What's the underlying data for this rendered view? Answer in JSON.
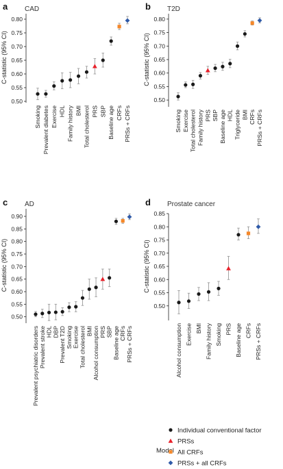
{
  "chart_data": [
    {
      "type": "scatter",
      "panel": "a",
      "title": "CAD",
      "ylabel": "C-statistic (95% CI)",
      "ylim": [
        0.5,
        0.82
      ],
      "yticks": [
        0.5,
        0.55,
        0.6,
        0.65,
        0.7,
        0.75,
        0.8
      ],
      "categories": [
        "Smoking",
        "Prevalent diabetes",
        "Exercise",
        "HDL",
        "Family history",
        "BMI",
        "Total cholesterol",
        "PRS",
        "SBP",
        "Baseline age",
        "CRFs",
        "PRSs + CRFs"
      ],
      "series_index": [
        0,
        0,
        0,
        0,
        0,
        0,
        0,
        1,
        0,
        0,
        2,
        3
      ],
      "values": [
        0.527,
        0.527,
        0.556,
        0.575,
        0.578,
        0.592,
        0.607,
        0.628,
        0.65,
        0.72,
        0.773,
        0.795
      ],
      "ci_low": [
        0.506,
        0.515,
        0.542,
        0.546,
        0.55,
        0.564,
        0.585,
        0.6,
        0.625,
        0.705,
        0.762,
        0.783
      ],
      "ci_high": [
        0.548,
        0.54,
        0.571,
        0.604,
        0.606,
        0.62,
        0.628,
        0.656,
        0.676,
        0.735,
        0.785,
        0.81
      ]
    },
    {
      "type": "scatter",
      "panel": "b",
      "title": "T2D",
      "ylabel": "C-statistic (95% CI)",
      "ylim": [
        0.48,
        0.82
      ],
      "yticks": [
        0.5,
        0.55,
        0.6,
        0.65,
        0.7,
        0.75,
        0.8
      ],
      "categories": [
        "Smoking",
        "Exercise",
        "Total cholesterol",
        "Family history",
        "PRS",
        "SBP",
        "Baseline age",
        "HDL",
        "Triglyceride",
        "BMI",
        "CRFs",
        "PRSs + CRFs"
      ],
      "series_index": [
        0,
        0,
        0,
        0,
        1,
        0,
        0,
        0,
        0,
        0,
        2,
        3
      ],
      "values": [
        0.513,
        0.556,
        0.558,
        0.59,
        0.61,
        0.618,
        0.624,
        0.635,
        0.7,
        0.745,
        0.785,
        0.795
      ],
      "ci_low": [
        0.5,
        0.546,
        0.543,
        0.578,
        0.595,
        0.605,
        0.61,
        0.62,
        0.686,
        0.734,
        0.778,
        0.786
      ],
      "ci_high": [
        0.527,
        0.567,
        0.573,
        0.602,
        0.625,
        0.632,
        0.64,
        0.651,
        0.715,
        0.757,
        0.793,
        0.805
      ]
    },
    {
      "type": "scatter",
      "panel": "c",
      "title": "AD",
      "ylabel": "C-statistic (95% CI)",
      "ylim": [
        0.48,
        0.93
      ],
      "yticks": [
        0.5,
        0.55,
        0.6,
        0.65,
        0.7,
        0.75,
        0.8,
        0.85,
        0.9
      ],
      "categories": [
        "Prevalent psychiatric disorders",
        "Prevalent stroke",
        "HDL",
        "DBP",
        "Prevalent T2D",
        "Smoking",
        "Exercise",
        "Total cholesterol",
        "BMI",
        "Alcohol consumption",
        "PRS",
        "SBP",
        "Baseline age",
        "CRFs",
        "PRSs + CRFs"
      ],
      "series_index": [
        0,
        0,
        0,
        0,
        0,
        0,
        0,
        0,
        0,
        0,
        1,
        0,
        0,
        2,
        3
      ],
      "values": [
        0.51,
        0.513,
        0.517,
        0.518,
        0.52,
        0.538,
        0.54,
        0.575,
        0.61,
        0.617,
        0.65,
        0.655,
        0.88,
        0.882,
        0.898
      ],
      "ci_low": [
        0.5,
        0.497,
        0.485,
        0.488,
        0.505,
        0.52,
        0.52,
        0.545,
        0.57,
        0.58,
        0.61,
        0.62,
        0.868,
        0.872,
        0.887
      ],
      "ci_high": [
        0.521,
        0.53,
        0.55,
        0.55,
        0.536,
        0.556,
        0.56,
        0.605,
        0.65,
        0.655,
        0.69,
        0.69,
        0.892,
        0.892,
        0.91
      ]
    },
    {
      "type": "scatter",
      "panel": "d",
      "title": "Prostate cancer",
      "ylabel": "C-statistic (95% CI)",
      "ylim": [
        0.45,
        0.85
      ],
      "yticks": [
        0.5,
        0.55,
        0.6,
        0.65,
        0.7,
        0.75,
        0.8,
        0.85
      ],
      "categories": [
        "Alcohol consumption",
        "Exercise",
        "BMI",
        "Family history",
        "Smoking",
        "PRS",
        "Baseline age",
        "CRFs",
        "PRSs + CRFs"
      ],
      "series_index": [
        0,
        0,
        0,
        0,
        0,
        1,
        0,
        2,
        3
      ],
      "values": [
        0.513,
        0.518,
        0.545,
        0.553,
        0.566,
        0.642,
        0.77,
        0.775,
        0.8
      ],
      "ci_low": [
        0.47,
        0.49,
        0.52,
        0.52,
        0.54,
        0.6,
        0.75,
        0.755,
        0.775
      ],
      "ci_high": [
        0.558,
        0.548,
        0.57,
        0.588,
        0.593,
        0.688,
        0.795,
        0.8,
        0.83
      ]
    }
  ],
  "legend": {
    "title": "Model",
    "entries": [
      {
        "label": "Individual conventional factor",
        "marker": "circle",
        "color": "#1a1a1a"
      },
      {
        "label": "PRSs",
        "marker": "triangle",
        "color": "#e8202a"
      },
      {
        "label": "All CRFs",
        "marker": "square",
        "color": "#f5882a"
      },
      {
        "label": "PRSs + all CRFs",
        "marker": "diamond",
        "color": "#2f5aa8"
      }
    ]
  },
  "colors": {
    "individual": "#1a1a1a",
    "prs": "#e8202a",
    "crfs": "#f5882a",
    "prs_crfs": "#2f5aa8",
    "errorbar": "#9a9a9a",
    "axis": "#222222"
  }
}
